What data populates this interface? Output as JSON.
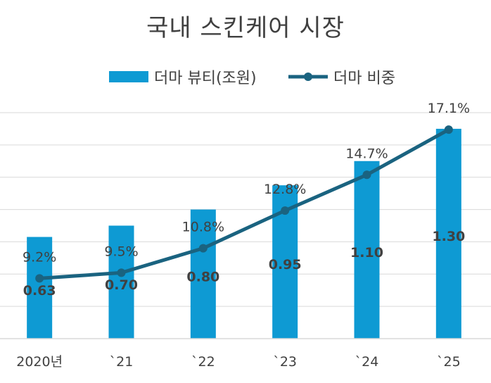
{
  "chart_data": {
    "type": "bar",
    "title": "국내 스킨케어 시장",
    "categories": [
      "2020년",
      "`21",
      "`22",
      "`23",
      "`24",
      "`25"
    ],
    "series": [
      {
        "name": "더마 뷰티(조원)",
        "type": "bar",
        "values": [
          0.63,
          0.7,
          0.8,
          0.95,
          1.1,
          1.3
        ],
        "labels": [
          "0.63",
          "0.70",
          "0.80",
          "0.95",
          "1.10",
          "1.30"
        ],
        "color": "#0e9ad3"
      },
      {
        "name": "더마 비중",
        "type": "line",
        "values": [
          9.2,
          9.5,
          10.8,
          12.8,
          14.7,
          17.1
        ],
        "labels": [
          "9.2%",
          "9.5%",
          "10.8%",
          "12.8%",
          "14.7%",
          "17.1%"
        ],
        "color": "#1a6380"
      }
    ],
    "bar_ylim": [
      0,
      1.4
    ],
    "line_ylim": [
      6,
      18
    ],
    "grid": true,
    "legend_position": "top"
  }
}
